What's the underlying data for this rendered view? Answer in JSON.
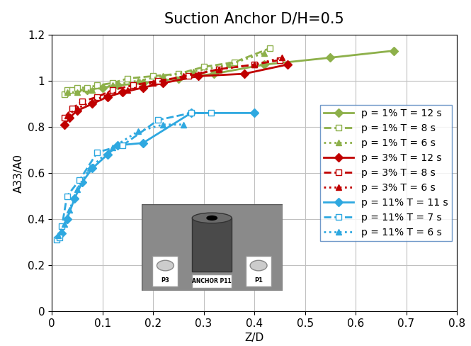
{
  "chart_data": {
    "type": "line",
    "title": "Suction Anchor D/H=0.5",
    "x_label": "Z/D",
    "y_label": "A33/A0",
    "xlim": [
      0,
      0.8
    ],
    "xticks": [
      0,
      0.1,
      0.2,
      0.3,
      0.4,
      0.5,
      0.6,
      0.7,
      0.8
    ],
    "ylim": [
      0,
      1.2
    ],
    "yticks": [
      0,
      0.2,
      0.4,
      0.6,
      0.8,
      1,
      1.2
    ],
    "grid": true,
    "legend": "center right",
    "annotations": [
      "P3",
      "ANCHOR P11",
      "P1"
    ],
    "series": [
      {
        "name": "p = 1% T = 12 s",
        "color": "#8db04a",
        "marker": "diamond",
        "line_style": "solid",
        "x": [
          0.03,
          0.05,
          0.07,
          0.1,
          0.13,
          0.18,
          0.25,
          0.32,
          0.42,
          0.55,
          0.675
        ],
        "values": [
          0.95,
          0.96,
          0.96,
          0.97,
          0.98,
          0.99,
          1.01,
          1.03,
          1.07,
          1.1,
          1.13
        ]
      },
      {
        "name": "p = 1% T = 8 s",
        "color": "#8db04a",
        "marker": "square",
        "line_style": "dashed",
        "x": [
          0.025,
          0.03,
          0.04,
          0.05,
          0.07,
          0.09,
          0.12,
          0.15,
          0.2,
          0.25,
          0.3,
          0.36,
          0.43
        ],
        "values": [
          0.94,
          0.96,
          0.96,
          0.97,
          0.97,
          0.98,
          0.99,
          1.01,
          1.02,
          1.03,
          1.06,
          1.08,
          1.14
        ]
      },
      {
        "name": "p = 1% T = 6 s",
        "color": "#8db04a",
        "marker": "triangle",
        "line_style": "dotted",
        "x": [
          0.03,
          0.05,
          0.08,
          0.12,
          0.17,
          0.22,
          0.28,
          0.35,
          0.42
        ],
        "values": [
          0.95,
          0.95,
          0.96,
          0.98,
          1.0,
          1.02,
          1.04,
          1.07,
          1.12
        ]
      },
      {
        "name": "p = 3% T = 12 s",
        "color": "#c00000",
        "marker": "diamond",
        "line_style": "solid",
        "x": [
          0.025,
          0.035,
          0.05,
          0.08,
          0.11,
          0.14,
          0.18,
          0.22,
          0.29,
          0.38,
          0.465
        ],
        "values": [
          0.81,
          0.84,
          0.87,
          0.9,
          0.93,
          0.95,
          0.97,
          0.99,
          1.02,
          1.03,
          1.07
        ]
      },
      {
        "name": "p = 3% T = 8 s",
        "color": "#c00000",
        "marker": "square",
        "line_style": "dashed",
        "x": [
          0.025,
          0.04,
          0.06,
          0.09,
          0.12,
          0.16,
          0.21,
          0.27,
          0.33,
          0.4,
          0.45
        ],
        "values": [
          0.84,
          0.88,
          0.91,
          0.93,
          0.96,
          0.98,
          1.0,
          1.02,
          1.05,
          1.07,
          1.09
        ]
      },
      {
        "name": "p = 3% T = 6 s",
        "color": "#c00000",
        "marker": "triangle",
        "line_style": "dotted",
        "x": [
          0.03,
          0.05,
          0.08,
          0.11,
          0.15,
          0.2,
          0.26,
          0.33,
          0.4,
          0.455
        ],
        "values": [
          0.85,
          0.88,
          0.91,
          0.94,
          0.96,
          0.99,
          1.02,
          1.05,
          1.07,
          1.1
        ]
      },
      {
        "name": "p = 11% T = 11 s",
        "color": "#2ea8e0",
        "marker": "diamond",
        "line_style": "solid",
        "x": [
          0.012,
          0.02,
          0.03,
          0.045,
          0.06,
          0.08,
          0.11,
          0.13,
          0.18,
          0.275,
          0.4
        ],
        "values": [
          0.32,
          0.34,
          0.4,
          0.49,
          0.56,
          0.62,
          0.68,
          0.72,
          0.73,
          0.86,
          0.86
        ]
      },
      {
        "name": "p = 11% T = 7 s",
        "color": "#2ea8e0",
        "marker": "square",
        "line_style": "dashed",
        "x": [
          0.01,
          0.015,
          0.02,
          0.03,
          0.055,
          0.09,
          0.14,
          0.21,
          0.275,
          0.315
        ],
        "values": [
          0.31,
          0.32,
          0.37,
          0.5,
          0.57,
          0.69,
          0.72,
          0.83,
          0.86,
          0.86
        ]
      },
      {
        "name": "p = 11% T = 6 s",
        "color": "#2ea8e0",
        "marker": "triangle",
        "line_style": "dotted",
        "x": [
          0.013,
          0.025,
          0.035,
          0.05,
          0.075,
          0.12,
          0.17,
          0.22,
          0.26
        ],
        "values": [
          0.33,
          0.38,
          0.44,
          0.53,
          0.62,
          0.71,
          0.78,
          0.81,
          0.81
        ]
      }
    ]
  }
}
